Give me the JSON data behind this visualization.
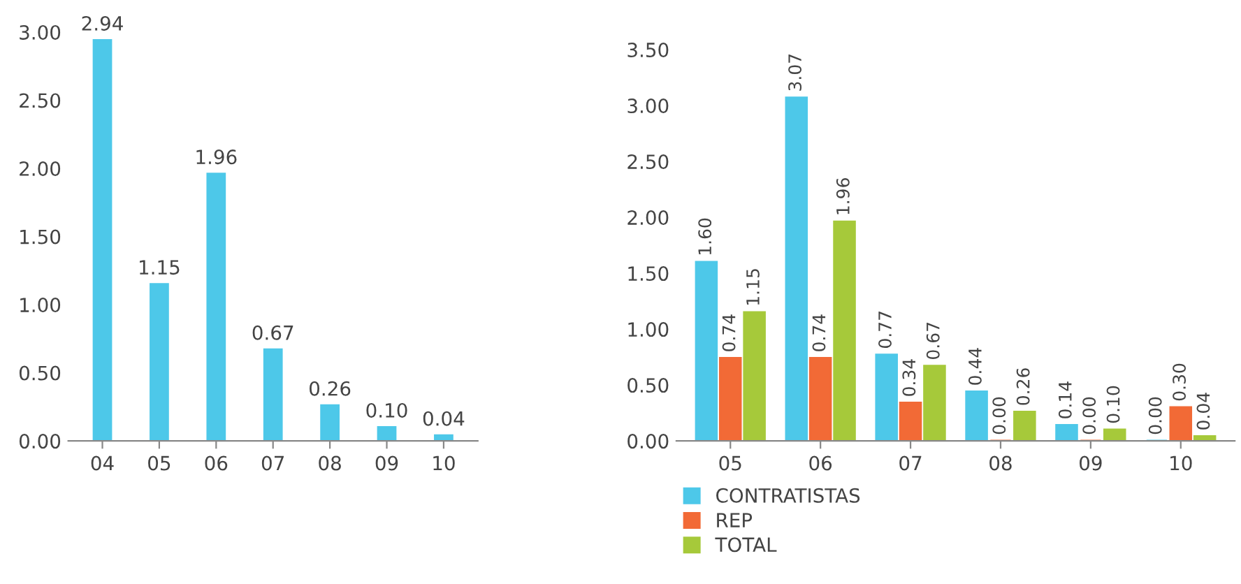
{
  "chart_data": [
    {
      "type": "bar",
      "categories": [
        "04",
        "05",
        "06",
        "07",
        "08",
        "09",
        "10"
      ],
      "values": [
        2.94,
        1.15,
        1.96,
        0.67,
        0.26,
        0.1,
        0.04
      ],
      "value_labels": [
        "2.94",
        "1.15",
        "1.96",
        "0.67",
        "0.26",
        "0.10",
        "0.04"
      ],
      "color": "#4dc8e9",
      "ylim": [
        0,
        3.0
      ],
      "yticks": [
        {
          "value": 0,
          "label": "0.00"
        },
        {
          "value": 0.5,
          "label": "0.50"
        },
        {
          "value": 1,
          "label": "1.00"
        },
        {
          "value": 1.5,
          "label": "1.50"
        },
        {
          "value": 2,
          "label": "2.00"
        },
        {
          "value": 2.5,
          "label": "2.50"
        },
        {
          "value": 3,
          "label": "3.00"
        }
      ],
      "grid": false,
      "legend": false
    },
    {
      "type": "bar",
      "categories": [
        "05",
        "06",
        "07",
        "08",
        "09",
        "10"
      ],
      "series": [
        {
          "name": "CONTRATISTAS",
          "color": "#4dc8e9",
          "values": [
            1.6,
            3.07,
            0.77,
            0.44,
            0.14,
            0.0
          ],
          "value_labels": [
            "1.60",
            "3.07",
            "0.77",
            "0.44",
            "0.14",
            "0.00"
          ]
        },
        {
          "name": "REP",
          "color": "#f26a36",
          "values": [
            0.74,
            0.74,
            0.34,
            0.0,
            0.0,
            0.3
          ],
          "value_labels": [
            "0.74",
            "0.74",
            "0.34",
            "0.00",
            "0.00",
            "0.30"
          ]
        },
        {
          "name": "TOTAL",
          "color": "#a6c93a",
          "values": [
            1.15,
            1.96,
            0.67,
            0.26,
            0.1,
            0.04
          ],
          "value_labels": [
            "1.15",
            "1.96",
            "0.67",
            "0.26",
            "0.10",
            "0.04"
          ]
        }
      ],
      "ylim": [
        0,
        3.5
      ],
      "yticks": [
        {
          "value": 0,
          "label": "0.00"
        },
        {
          "value": 0.5,
          "label": "0.50"
        },
        {
          "value": 1,
          "label": "1.00"
        },
        {
          "value": 1.5,
          "label": "1.50"
        },
        {
          "value": 2,
          "label": "2.00"
        },
        {
          "value": 2.5,
          "label": "2.50"
        },
        {
          "value": 3,
          "label": "3.00"
        },
        {
          "value": 3.5,
          "label": "3.50"
        }
      ],
      "grid": false,
      "legend": "bottom"
    }
  ]
}
